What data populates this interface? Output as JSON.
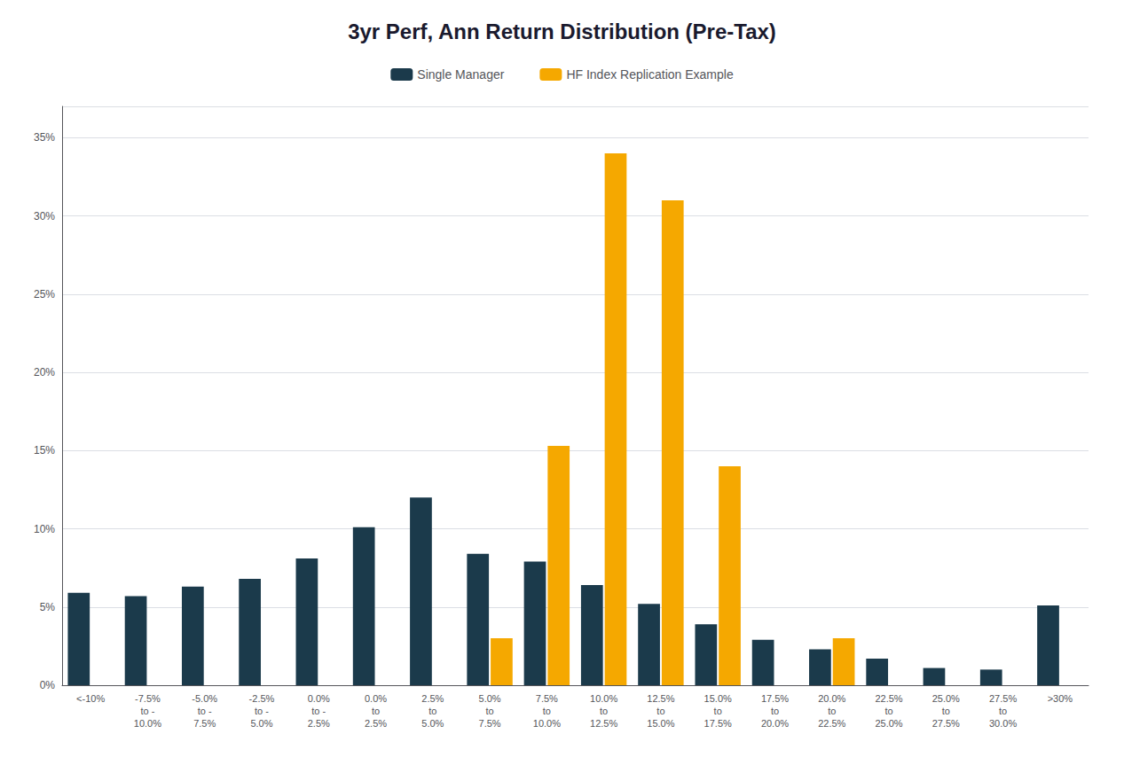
{
  "chart_data": {
    "type": "bar",
    "title": "3yr Perf, Ann Return Distribution (Pre-Tax)",
    "categories": [
      "<-10%",
      "-7.5%\nto -\n10.0%",
      "-5.0%\nto -\n7.5%",
      "-2.5%\nto -\n5.0%",
      "0.0%\nto -\n2.5%",
      "0.0%\nto\n2.5%",
      "2.5%\nto\n5.0%",
      "5.0%\nto\n7.5%",
      "7.5%\nto\n10.0%",
      "10.0%\nto\n12.5%",
      "12.5%\nto\n15.0%",
      "15.0%\nto\n17.5%",
      "17.5%\nto\n20.0%",
      "20.0%\nto\n22.5%",
      "22.5%\nto\n25.0%",
      "25.0%\nto\n27.5%",
      "27.5%\nto\n30.0%",
      ">30%"
    ],
    "series": [
      {
        "name": "Single Manager",
        "color": "#1b3a4b",
        "values": [
          5.9,
          5.7,
          6.3,
          6.8,
          8.1,
          10.1,
          12.0,
          8.4,
          7.9,
          6.4,
          5.2,
          3.9,
          2.9,
          2.3,
          1.7,
          1.1,
          1.0,
          5.1
        ]
      },
      {
        "name": "HF Index Replication Example",
        "color": "#f5a800",
        "values": [
          0,
          0,
          0,
          0,
          0,
          0,
          0,
          3.0,
          15.3,
          34.0,
          31.0,
          14.0,
          0,
          3.0,
          0,
          0,
          0,
          0
        ]
      }
    ],
    "ylim": [
      0,
      37
    ],
    "yticks": [
      {
        "value": 0,
        "label": "0%"
      },
      {
        "value": 5,
        "label": "5%"
      },
      {
        "value": 10,
        "label": "10%"
      },
      {
        "value": 15,
        "label": "15%"
      },
      {
        "value": 20,
        "label": "20%"
      },
      {
        "value": 25,
        "label": "25%"
      },
      {
        "value": 30,
        "label": "30%"
      },
      {
        "value": 35,
        "label": "35%"
      }
    ],
    "grid": true,
    "legend": "top"
  }
}
